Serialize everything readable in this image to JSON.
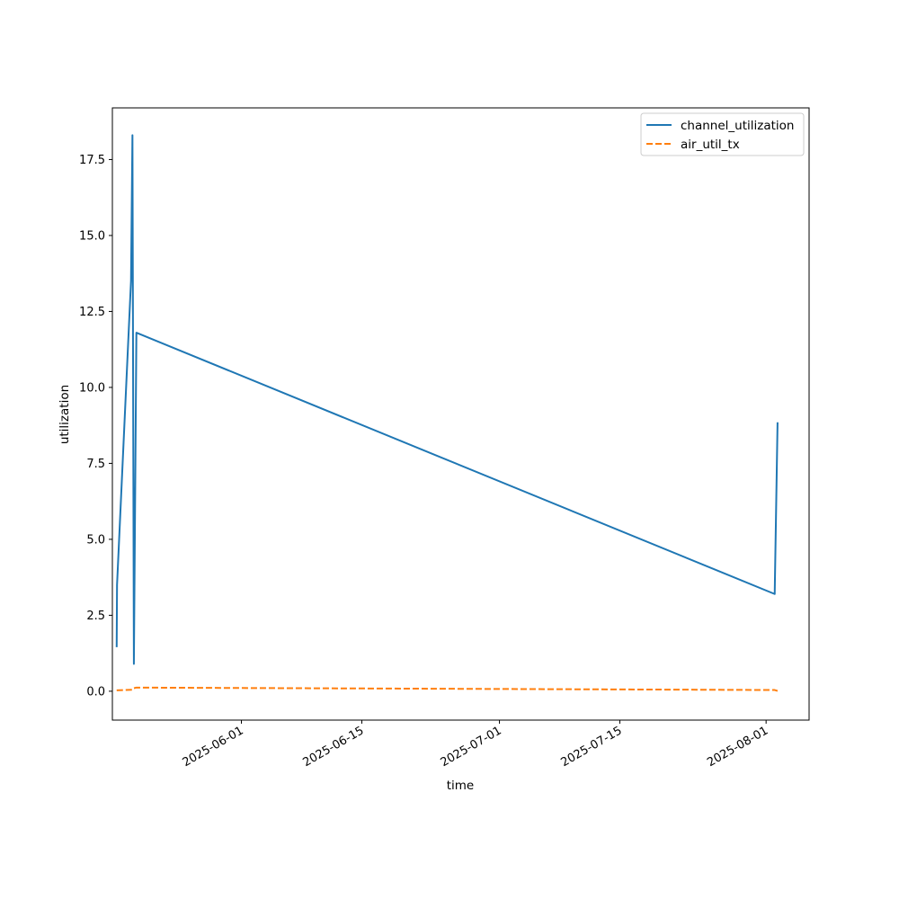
{
  "chart_data": {
    "type": "line",
    "title": "",
    "xlabel": "time",
    "ylabel": "utilization",
    "x_axis_type": "date",
    "xlim": [
      "2025-05-17",
      "2025-08-06"
    ],
    "ylim": [
      -0.95,
      19.2
    ],
    "x_ticks": [
      "2025-06-01",
      "2025-06-15",
      "2025-07-01",
      "2025-07-15",
      "2025-08-01"
    ],
    "x_tick_labels": [
      "2025-06-01",
      "2025-06-15",
      "2025-07-01",
      "2025-07-15",
      "2025-08-01"
    ],
    "y_ticks": [
      0.0,
      2.5,
      5.0,
      7.5,
      10.0,
      12.5,
      15.0,
      17.5
    ],
    "y_tick_labels": [
      "0.0",
      "2.5",
      "5.0",
      "7.5",
      "10.0",
      "12.5",
      "15.0",
      "17.5"
    ],
    "grid": false,
    "legend": "top-right",
    "series": [
      {
        "name": "channel_utilization",
        "color": "#1f77b4",
        "dash": "solid",
        "points": [
          [
            "2025-05-17T12:00",
            1.45
          ],
          [
            "2025-05-17T13:00",
            3.5
          ],
          [
            "2025-05-19T04:00",
            13.5
          ],
          [
            "2025-05-19T08:00",
            18.3
          ],
          [
            "2025-05-19T12:00",
            0.9
          ],
          [
            "2025-05-19T19:00",
            11.8
          ],
          [
            "2025-08-02T00:00",
            3.2
          ],
          [
            "2025-08-02T08:00",
            8.85
          ]
        ]
      },
      {
        "name": "air_util_tx",
        "color": "#ff7f0e",
        "dash": "dashed",
        "points": [
          [
            "2025-05-17T12:00",
            0.03
          ],
          [
            "2025-05-19T08:00",
            0.05
          ],
          [
            "2025-05-19T12:00",
            0.1
          ],
          [
            "2025-05-19T19:00",
            0.12
          ],
          [
            "2025-08-02T00:00",
            0.04
          ],
          [
            "2025-08-02T08:00",
            0.01
          ]
        ]
      }
    ]
  }
}
